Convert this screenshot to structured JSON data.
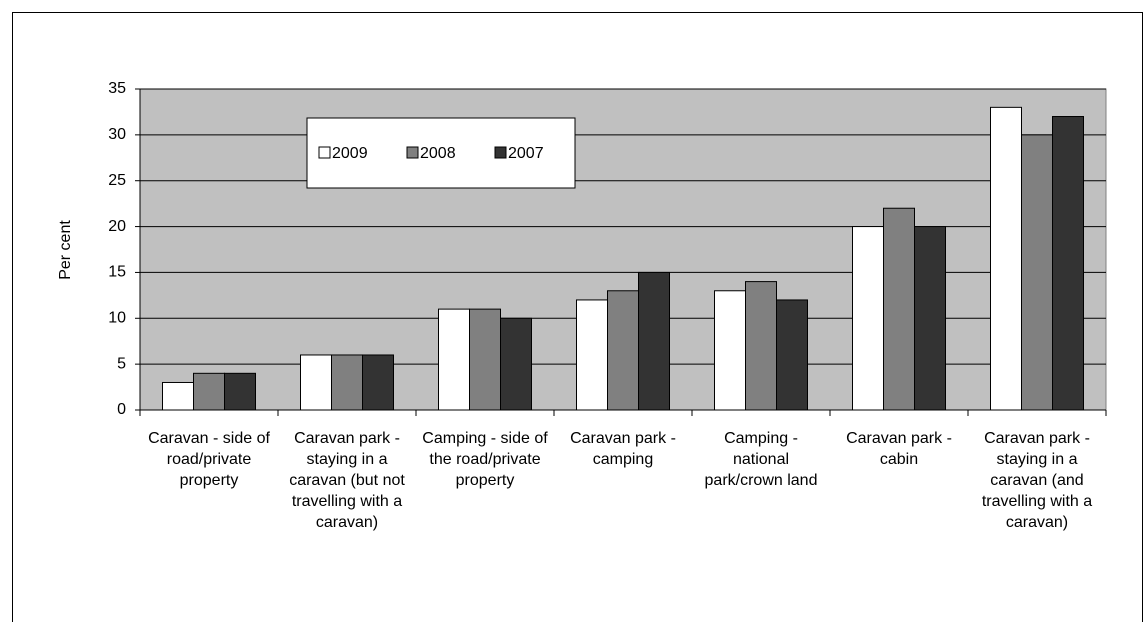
{
  "chart_data": {
    "type": "bar",
    "ylabel": "Per cent",
    "categories": [
      "Caravan - side of road/private property",
      "Caravan park - staying in a caravan (but not travelling with a caravan)",
      "Camping - side of the road/private property",
      "Caravan park - camping",
      "Camping - national park/crown land",
      "Caravan park - cabin",
      "Caravan park - staying in a caravan (and travelling with a caravan)"
    ],
    "series": [
      {
        "name": "2009",
        "color": "#ffffff",
        "values": [
          3,
          6,
          11,
          12,
          13,
          20,
          33
        ]
      },
      {
        "name": "2008",
        "color": "#808080",
        "values": [
          4,
          6,
          11,
          13,
          14,
          22,
          30
        ]
      },
      {
        "name": "2007",
        "color": "#333333",
        "values": [
          4,
          6,
          10,
          15,
          12,
          20,
          32
        ]
      }
    ],
    "ylim": [
      0,
      35
    ],
    "yticks": [
      0,
      5,
      10,
      15,
      20,
      25,
      30,
      35
    ],
    "grid": true,
    "legend": "upper left"
  }
}
